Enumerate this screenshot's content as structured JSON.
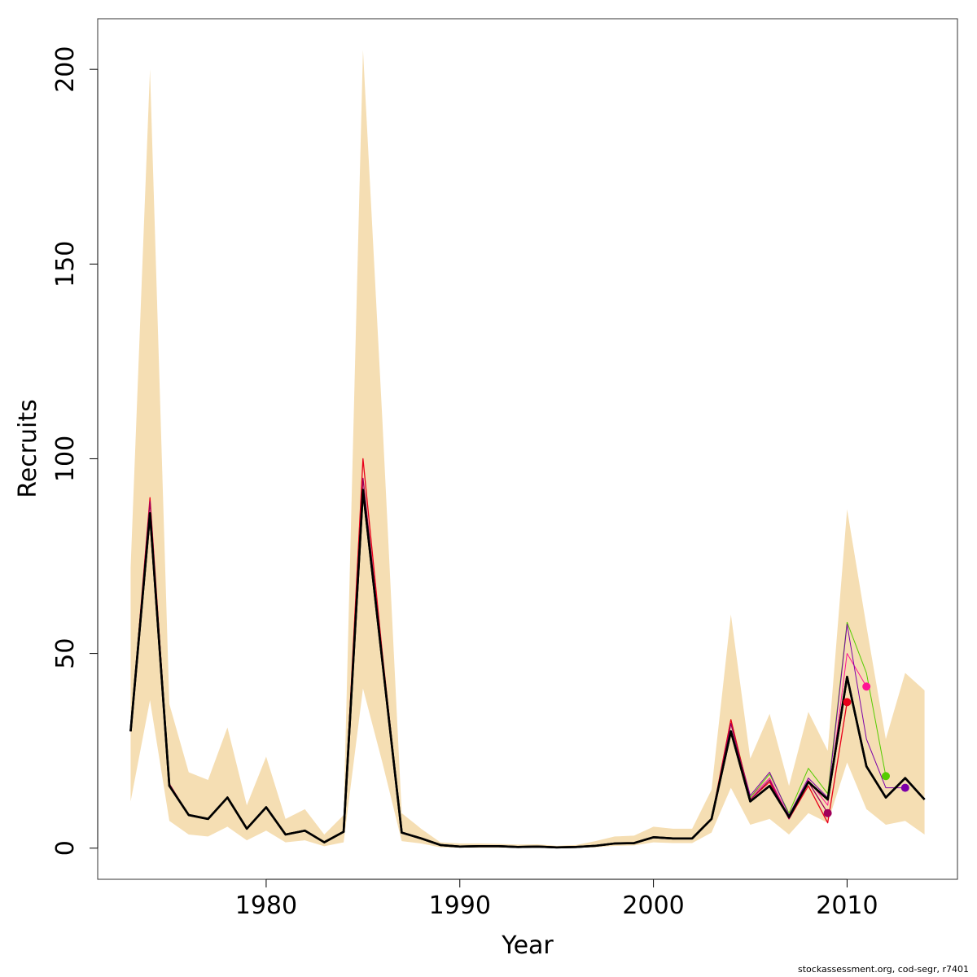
{
  "chart_data": {
    "type": "line",
    "xlabel": "Year",
    "ylabel": "Recruits",
    "xlim": [
      1971.3,
      2015.7
    ],
    "ylim": [
      -8,
      213
    ],
    "x_ticks": [
      1980,
      1990,
      2000,
      2010
    ],
    "y_ticks": [
      0,
      50,
      100,
      150,
      200
    ],
    "grid": false,
    "band": {
      "color": "#F5DEB3",
      "x": [
        1973,
        1974,
        1975,
        1976,
        1977,
        1978,
        1979,
        1980,
        1981,
        1982,
        1983,
        1984,
        1985,
        1986,
        1987,
        1988,
        1989,
        1990,
        1991,
        1992,
        1993,
        1994,
        1995,
        1996,
        1997,
        1998,
        1999,
        2000,
        2001,
        2002,
        2003,
        2004,
        2005,
        2006,
        2007,
        2008,
        2009,
        2010,
        2011,
        2012,
        2013,
        2014
      ],
      "lower": [
        12,
        38,
        7,
        3.5,
        3,
        5.5,
        2,
        4.5,
        1.5,
        2,
        0.5,
        1.5,
        41,
        22,
        1.8,
        1.2,
        0.2,
        0.1,
        0.1,
        0.1,
        0.1,
        0.1,
        0.05,
        0.1,
        0.2,
        0.6,
        0.7,
        1.5,
        1.3,
        1.3,
        4,
        15.5,
        6,
        7.5,
        3.5,
        9,
        6.5,
        22,
        10,
        6,
        7,
        3.5
      ],
      "upper": [
        72,
        200,
        37,
        19.5,
        17.5,
        31,
        11,
        23.5,
        7.5,
        10,
        3.5,
        8.5,
        205,
        110,
        9,
        5,
        1.5,
        1.2,
        1.2,
        1.1,
        0.9,
        1.0,
        0.6,
        0.8,
        1.8,
        3,
        3.2,
        5.5,
        5,
        5,
        15,
        60,
        23,
        34.5,
        16,
        35,
        25,
        87,
        57,
        28,
        45,
        40.5
      ]
    },
    "series": [
      {
        "color": "#000000",
        "width": 2.6,
        "x": [
          1973,
          1974,
          1975,
          1976,
          1977,
          1978,
          1979,
          1980,
          1981,
          1982,
          1983,
          1984,
          1985,
          1986,
          1987,
          1988,
          1989,
          1990,
          1991,
          1992,
          1993,
          1994,
          1995,
          1996,
          1997,
          1998,
          1999,
          2000,
          2001,
          2002,
          2003,
          2004,
          2005,
          2006,
          2007,
          2008,
          2009,
          2010,
          2011,
          2012,
          2013,
          2014
        ],
        "values": [
          30,
          86,
          16,
          8.5,
          7.5,
          13,
          5,
          10.5,
          3.5,
          4.5,
          1.5,
          4.2,
          92,
          48,
          4,
          2.5,
          0.8,
          0.4,
          0.5,
          0.5,
          0.3,
          0.4,
          0.2,
          0.3,
          0.6,
          1.2,
          1.3,
          2.8,
          2.5,
          2.5,
          7.5,
          30,
          12,
          16,
          8,
          17,
          12.5,
          44,
          21,
          13,
          18,
          12.5
        ]
      },
      {
        "color": "#E8001A",
        "width": 1.3,
        "x": [
          1973,
          1974,
          1975,
          1976,
          1977,
          1978,
          1979,
          1980,
          1981,
          1982,
          1983,
          1984,
          1985,
          1986,
          1987,
          1988,
          1989,
          1990,
          1991,
          1992,
          1993,
          1994,
          1995,
          1996,
          1997,
          1998,
          1999,
          2000,
          2001,
          2002,
          2003,
          2004,
          2005,
          2006,
          2007,
          2008,
          2009,
          2010
        ],
        "values": [
          30,
          90,
          16.5,
          8.5,
          7.5,
          13,
          5,
          10.5,
          3.5,
          4.5,
          1.5,
          4.3,
          100,
          50,
          4,
          2.5,
          0.8,
          0.4,
          0.5,
          0.5,
          0.3,
          0.4,
          0.2,
          0.3,
          0.6,
          1.2,
          1.3,
          2.8,
          2.5,
          2.5,
          7.5,
          33,
          12.5,
          17,
          7.5,
          16,
          6.5,
          37.5
        ],
        "end_marker": true
      },
      {
        "color": "#FF1493",
        "width": 1.0,
        "x": [
          2003,
          2004,
          2005,
          2006,
          2007,
          2008,
          2009,
          2010,
          2011
        ],
        "values": [
          7.5,
          32,
          13,
          18,
          8,
          17.5,
          11,
          50,
          41.5
        ],
        "end_marker": true
      },
      {
        "color": "#55CC00",
        "width": 1.0,
        "x": [
          2003,
          2004,
          2005,
          2006,
          2007,
          2008,
          2009,
          2010,
          2011,
          2012
        ],
        "values": [
          7.5,
          33,
          13,
          19,
          9,
          20.5,
          14,
          58,
          45,
          18.5
        ],
        "end_marker": true
      },
      {
        "color": "#7B00A8",
        "width": 1.0,
        "x": [
          2003,
          2004,
          2005,
          2006,
          2007,
          2008,
          2009,
          2010,
          2011,
          2012,
          2013
        ],
        "values": [
          7.5,
          32,
          13.5,
          19.5,
          8.5,
          18,
          13,
          57.5,
          28,
          15.5,
          15.5
        ],
        "end_marker": true
      },
      {
        "color": "#A0005A",
        "width": 1.3,
        "x": [
          1973,
          1974,
          1975,
          1976,
          1977,
          1978,
          1979,
          1980,
          1981,
          1982,
          1983,
          1984,
          1985,
          1986,
          1987,
          1988,
          1989,
          1990,
          1991,
          1992,
          1993,
          1994,
          1995,
          1996,
          1997,
          1998,
          1999,
          2000,
          2001,
          2002,
          2003,
          2004,
          2005,
          2006,
          2007,
          2008,
          2009
        ],
        "values": [
          30,
          89,
          16.5,
          8.5,
          7.5,
          13,
          5,
          10.5,
          3.5,
          4.5,
          1.5,
          4.3,
          95,
          49,
          4,
          2.5,
          0.8,
          0.4,
          0.5,
          0.5,
          0.3,
          0.4,
          0.2,
          0.3,
          0.6,
          1.2,
          1.3,
          2.8,
          2.5,
          2.5,
          7.5,
          32,
          12.5,
          17.5,
          7.5,
          17,
          9
        ],
        "end_marker": true
      }
    ],
    "credit": "stockassessment.org, cod-segr, r7401"
  }
}
